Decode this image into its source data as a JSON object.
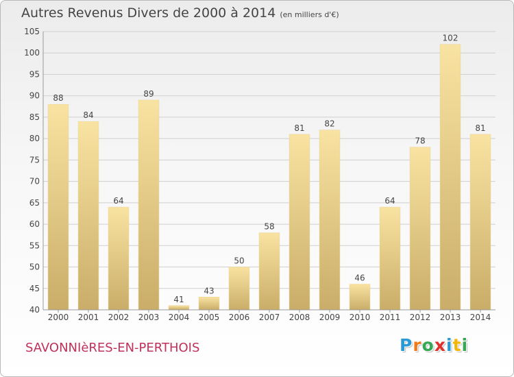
{
  "title": "Autres Revenus Divers de 2000 à 2014",
  "unit": "(en milliers d'€)",
  "place": "SAVONNIèRES-EN-PERTHOIS",
  "brand": {
    "text": "Proxiti",
    "letters": [
      {
        "ch": "P",
        "color": "#2a9ad6"
      },
      {
        "ch": "r",
        "color": "#f07a1b"
      },
      {
        "ch": "o",
        "color": "#34a853"
      },
      {
        "ch": "x",
        "color": "#e0302a"
      },
      {
        "ch": "i",
        "color": "#2a9ad6"
      },
      {
        "ch": "t",
        "color": "#f2b705"
      },
      {
        "ch": "i",
        "color": "#34a853"
      }
    ]
  },
  "chart_data": {
    "type": "bar",
    "categories": [
      "2000",
      "2001",
      "2002",
      "2003",
      "2004",
      "2005",
      "2006",
      "2007",
      "2008",
      "2009",
      "2010",
      "2011",
      "2012",
      "2013",
      "2014"
    ],
    "values": [
      88,
      84,
      64,
      89,
      41,
      43,
      50,
      58,
      81,
      82,
      46,
      64,
      78,
      102,
      81
    ],
    "ylim": [
      40,
      105
    ],
    "yticks": [
      40,
      45,
      50,
      55,
      60,
      65,
      70,
      75,
      80,
      85,
      90,
      95,
      100,
      105
    ],
    "grid": true,
    "colors": {
      "bar_light": "#f9e3a2",
      "bar_dark": "#c9ad68",
      "grid": "#cfcfcf",
      "text": "#444444"
    }
  }
}
